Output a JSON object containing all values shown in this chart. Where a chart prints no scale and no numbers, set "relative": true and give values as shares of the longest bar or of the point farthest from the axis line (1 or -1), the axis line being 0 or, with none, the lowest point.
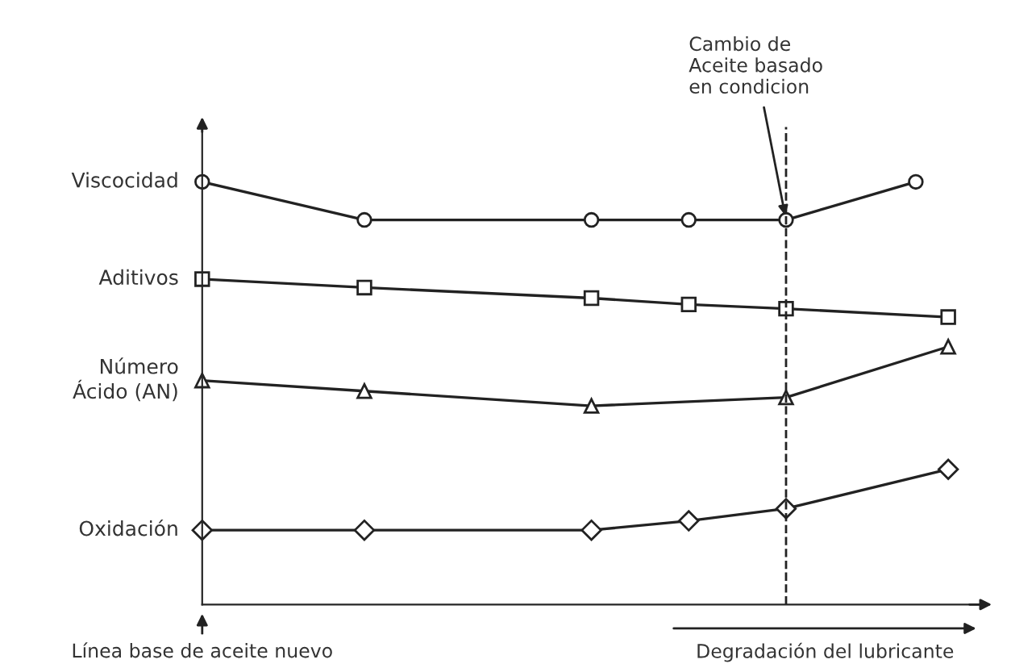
{
  "chart_data": {
    "type": "line",
    "relative": true,
    "legend": false,
    "grid": false,
    "line_style": "solid",
    "categories": [
      null,
      null,
      null,
      null,
      null,
      null,
      null,
      null,
      null,
      null,
      null,
      null,
      null,
      null,
      null,
      null,
      null,
      null,
      null,
      null,
      null,
      null,
      null,
      null
    ],
    "series": [
      {
        "name": "Viscocidad",
        "color": "#222222",
        "marker": "circle",
        "values": [
          1,
          null,
          null,
          null,
          null,
          0.91,
          null,
          null,
          null,
          null,
          null,
          null,
          0.91,
          null,
          null,
          0.91,
          null,
          null,
          0.91,
          null,
          null,
          null,
          1,
          null
        ]
      },
      {
        "name": "Aditivos",
        "color": "#222222",
        "marker": "square",
        "values": [
          0.77,
          null,
          null,
          null,
          null,
          0.75,
          null,
          null,
          null,
          null,
          null,
          null,
          0.725,
          null,
          null,
          0.71,
          null,
          null,
          0.7,
          null,
          null,
          null,
          null,
          0.68
        ]
      },
      {
        "name": "Número\nÁcido (AN)",
        "color": "#222222",
        "marker": "triangle",
        "values": [
          0.53,
          null,
          null,
          null,
          null,
          0.505,
          null,
          null,
          null,
          null,
          null,
          null,
          0.47,
          null,
          null,
          null,
          null,
          null,
          0.49,
          null,
          null,
          null,
          null,
          0.61
        ]
      },
      {
        "name": "Oxidación",
        "color": "#222222",
        "marker": "diamond",
        "values": [
          0.176,
          null,
          null,
          null,
          null,
          0.176,
          null,
          null,
          null,
          null,
          null,
          null,
          0.176,
          null,
          null,
          0.198,
          null,
          null,
          0.227,
          null,
          null,
          null,
          null,
          0.32
        ]
      }
    ],
    "annotations": [
      "Cambio de\nAceite basado\nen condicion",
      "Línea base de aceite nuevo",
      "Degradación del lubricante"
    ]
  }
}
